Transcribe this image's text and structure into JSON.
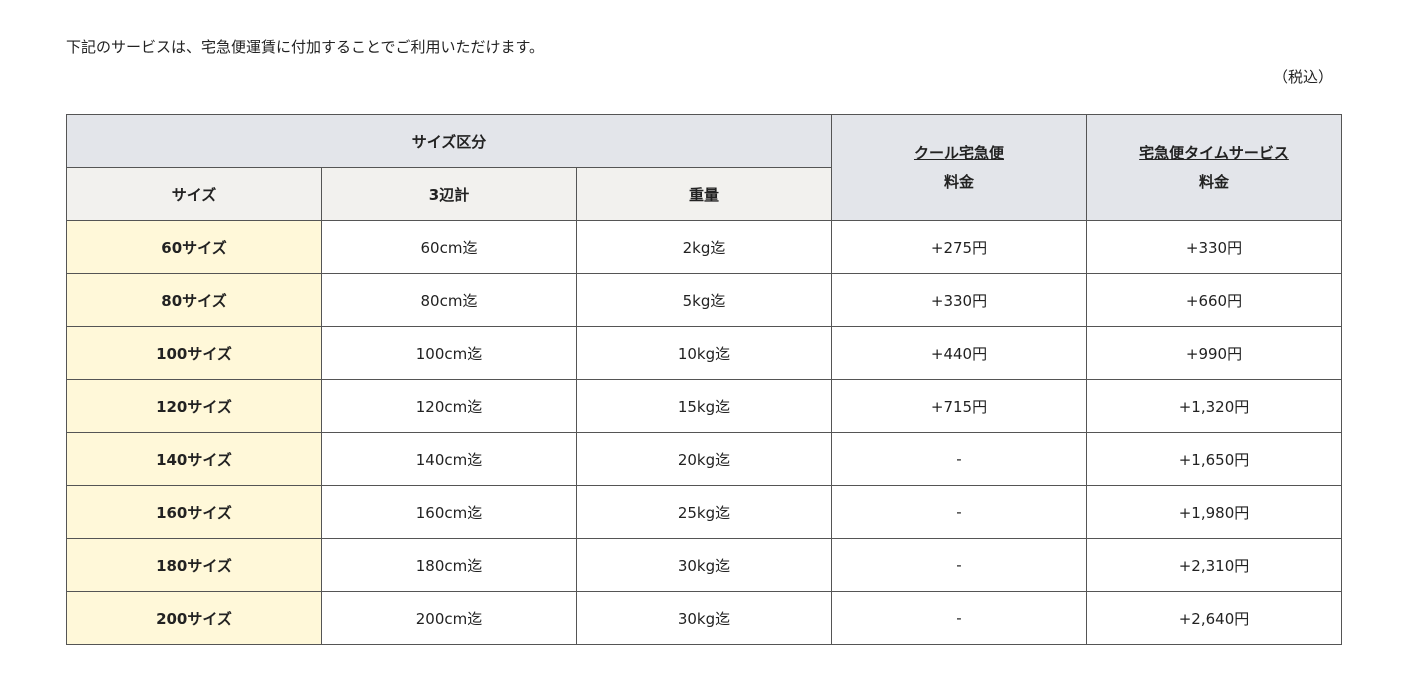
{
  "intro": "下記のサービスは、宅急便運賃に付加することでご利用いただけます。",
  "tax_note": "（税込）",
  "table": {
    "group_header": "サイズ区分",
    "headers": [
      "サイズ",
      "3辺計",
      "重量"
    ],
    "services": [
      {
        "name": "クール宅急便",
        "sub": "料金"
      },
      {
        "name": "宅急便タイムサービス",
        "sub": "料金"
      }
    ],
    "rows": [
      [
        "60サイズ",
        "60cm迄",
        "2kg迄",
        "+275円",
        "+330円"
      ],
      [
        "80サイズ",
        "80cm迄",
        "5kg迄",
        "+330円",
        "+660円"
      ],
      [
        "100サイズ",
        "100cm迄",
        "10kg迄",
        "+440円",
        "+990円"
      ],
      [
        "120サイズ",
        "120cm迄",
        "15kg迄",
        "+715円",
        "+1,320円"
      ],
      [
        "140サイズ",
        "140cm迄",
        "20kg迄",
        "-",
        "+1,650円"
      ],
      [
        "160サイズ",
        "160cm迄",
        "25kg迄",
        "-",
        "+1,980円"
      ],
      [
        "180サイズ",
        "180cm迄",
        "30kg迄",
        "-",
        "+2,310円"
      ],
      [
        "200サイズ",
        "200cm迄",
        "30kg迄",
        "-",
        "+2,640円"
      ]
    ]
  },
  "colors": {
    "header": "#e3e5ea",
    "subheader": "#f2f1ee",
    "size_column": "#fff8d9",
    "border": "#555555"
  }
}
